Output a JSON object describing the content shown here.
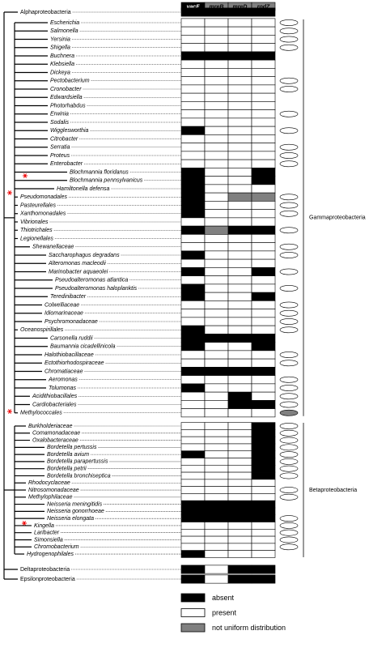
{
  "genes": [
    {
      "name": "yacF",
      "color": "#000000"
    },
    {
      "name": "mreB",
      "color": "#808080"
    },
    {
      "name": "mreD",
      "color": "#808080"
    },
    {
      "name": "rodZ",
      "color": "#808080"
    }
  ],
  "states": {
    "a": {
      "label": "absent",
      "color": "#000000"
    },
    "p": {
      "label": "present",
      "color": "#ffffff"
    },
    "n": {
      "label": "not uniform distribution",
      "color": "#808080"
    }
  },
  "sections": [
    {
      "label": null,
      "rows": [
        {
          "name": "Alphaproteobacteria",
          "cells": [
            "a",
            "a",
            "a",
            "a"
          ],
          "oval": null
        }
      ]
    },
    {
      "label": "Gammaproteobacteria",
      "rows": [
        {
          "name": "Escherichia",
          "cells": [
            "p",
            "p",
            "p",
            "p"
          ],
          "oval": "p"
        },
        {
          "name": "Salmonella",
          "cells": [
            "p",
            "p",
            "p",
            "p"
          ],
          "oval": "p"
        },
        {
          "name": "Yersinia",
          "cells": [
            "p",
            "p",
            "p",
            "p"
          ],
          "oval": "p"
        },
        {
          "name": "Shigella",
          "cells": [
            "p",
            "p",
            "p",
            "p"
          ],
          "oval": "p"
        },
        {
          "name": "Buchnera",
          "cells": [
            "a",
            "a",
            "a",
            "a"
          ],
          "oval": null
        },
        {
          "name": "Klebsiella",
          "cells": [
            "p",
            "p",
            "p",
            "p"
          ],
          "oval": null
        },
        {
          "name": "Dickeya",
          "cells": [
            "p",
            "p",
            "p",
            "p"
          ],
          "oval": null
        },
        {
          "name": "Pectobacterium",
          "cells": [
            "p",
            "p",
            "p",
            "p"
          ],
          "oval": "p"
        },
        {
          "name": "Cronobacter",
          "cells": [
            "p",
            "p",
            "p",
            "p"
          ],
          "oval": "p"
        },
        {
          "name": "Edwardsiella",
          "cells": [
            "p",
            "p",
            "p",
            "p"
          ],
          "oval": null
        },
        {
          "name": "Photorhabdus",
          "cells": [
            "p",
            "p",
            "p",
            "p"
          ],
          "oval": null
        },
        {
          "name": "Erwinia",
          "cells": [
            "p",
            "p",
            "p",
            "p"
          ],
          "oval": "p"
        },
        {
          "name": "Sodalis",
          "cells": [
            "p",
            "p",
            "p",
            "p"
          ],
          "oval": null
        },
        {
          "name": "Wigglesworthia",
          "cells": [
            "a",
            "p",
            "p",
            "p"
          ],
          "oval": "p"
        },
        {
          "name": "Citrobacter",
          "cells": [
            "p",
            "p",
            "p",
            "p"
          ],
          "oval": null
        },
        {
          "name": "Serratia",
          "cells": [
            "p",
            "p",
            "p",
            "p"
          ],
          "oval": "p"
        },
        {
          "name": "Proteus",
          "cells": [
            "p",
            "p",
            "p",
            "p"
          ],
          "oval": "p"
        },
        {
          "name": "Enterobacter",
          "cells": [
            "p",
            "p",
            "p",
            "p"
          ],
          "oval": "p"
        },
        {
          "name": "Blochmannia floridanus",
          "cells": [
            "a",
            "p",
            "p",
            "a"
          ],
          "oval": null
        },
        {
          "name": "Blochmannia pennsylvanicus",
          "cells": [
            "a",
            "p",
            "p",
            "a"
          ],
          "oval": null
        },
        {
          "name": "Hamiltonella defensa",
          "cells": [
            "a",
            "p",
            "p",
            "p"
          ],
          "oval": null
        },
        {
          "name": "Pseudomonadales",
          "cells": [
            "a",
            "p",
            "n",
            "n"
          ],
          "oval": "p"
        },
        {
          "name": "Pasteurellales",
          "cells": [
            "a",
            "p",
            "p",
            "p"
          ],
          "oval": "p"
        },
        {
          "name": "Xanthomonadales",
          "cells": [
            "a",
            "p",
            "p",
            "p"
          ],
          "oval": "p"
        },
        {
          "name": "Vibrionales",
          "cells": [
            "p",
            "p",
            "p",
            "p"
          ],
          "oval": null
        },
        {
          "name": "Thiotrichales",
          "cells": [
            "a",
            "n",
            "a",
            "a"
          ],
          "oval": "p"
        },
        {
          "name": "Legionellales",
          "cells": [
            "p",
            "p",
            "p",
            "p"
          ],
          "oval": null
        },
        {
          "name": "Shewanellaceae",
          "cells": [
            "p",
            "p",
            "p",
            "p"
          ],
          "oval": "p"
        },
        {
          "name": "Saccharophagus degradans",
          "cells": [
            "a",
            "p",
            "p",
            "p"
          ],
          "oval": "p"
        },
        {
          "name": "Alteromonas macleodii",
          "cells": [
            "p",
            "p",
            "p",
            "p"
          ],
          "oval": null
        },
        {
          "name": "Marinobacter aquaeolei",
          "cells": [
            "a",
            "p",
            "p",
            "a"
          ],
          "oval": "p"
        },
        {
          "name": "Pseudoalteromonas atlantica",
          "cells": [
            "p",
            "p",
            "p",
            "p"
          ],
          "oval": null
        },
        {
          "name": "Pseudoalteromonas haloplanktis",
          "cells": [
            "a",
            "p",
            "p",
            "p"
          ],
          "oval": "p"
        },
        {
          "name": "Teredinibacter",
          "cells": [
            "a",
            "p",
            "p",
            "a"
          ],
          "oval": null
        },
        {
          "name": "Colwelliaceae",
          "cells": [
            "p",
            "p",
            "p",
            "p"
          ],
          "oval": "p"
        },
        {
          "name": "Idiomarinaceae",
          "cells": [
            "p",
            "p",
            "p",
            "p"
          ],
          "oval": "p"
        },
        {
          "name": "Psychromonadaceae",
          "cells": [
            "p",
            "p",
            "p",
            "p"
          ],
          "oval": "p"
        },
        {
          "name": "Oceanospirillales",
          "cells": [
            "a",
            "p",
            "p",
            "p"
          ],
          "oval": "p"
        },
        {
          "name": "Carsonella ruddii",
          "cells": [
            "a",
            "a",
            "a",
            "a"
          ],
          "oval": null
        },
        {
          "name": "Baumannia cicadellinicola",
          "cells": [
            "a",
            "p",
            "p",
            "a"
          ],
          "oval": null
        },
        {
          "name": "Halothiobacillaceae",
          "cells": [
            "p",
            "p",
            "p",
            "p"
          ],
          "oval": "p"
        },
        {
          "name": "Ectothiorhodospiraceae",
          "cells": [
            "p",
            "p",
            "p",
            "p"
          ],
          "oval": "p"
        },
        {
          "name": "Chromatiaceae",
          "cells": [
            "a",
            "a",
            "a",
            "a"
          ],
          "oval": null
        },
        {
          "name": "Aeromonas",
          "cells": [
            "p",
            "p",
            "p",
            "p"
          ],
          "oval": "p"
        },
        {
          "name": "Tolumonas",
          "cells": [
            "a",
            "p",
            "p",
            "p"
          ],
          "oval": "p"
        },
        {
          "name": "Acidithiobacillales",
          "cells": [
            "p",
            "p",
            "a",
            "p"
          ],
          "oval": "p"
        },
        {
          "name": "Cardiobacteriales",
          "cells": [
            "p",
            "p",
            "a",
            "a"
          ],
          "oval": "p"
        },
        {
          "name": "Methylococcales",
          "cells": [
            "p",
            "p",
            "p",
            "p"
          ],
          "oval": "n"
        }
      ]
    },
    {
      "label": "Betaproteobacteria",
      "rows": [
        {
          "name": "Burkholderiaceae",
          "cells": [
            "p",
            "p",
            "p",
            "a"
          ],
          "oval": "p"
        },
        {
          "name": "Comamonadaceae",
          "cells": [
            "p",
            "p",
            "p",
            "a"
          ],
          "oval": "p"
        },
        {
          "name": "Oxalobacteraceae",
          "cells": [
            "p",
            "p",
            "p",
            "a"
          ],
          "oval": "p"
        },
        {
          "name": "Bordetella pertussis",
          "cells": [
            "p",
            "p",
            "p",
            "a"
          ],
          "oval": "p"
        },
        {
          "name": "Bordetella avium",
          "cells": [
            "a",
            "p",
            "p",
            "a"
          ],
          "oval": "p"
        },
        {
          "name": "Bordetella parapertussis",
          "cells": [
            "p",
            "p",
            "p",
            "a"
          ],
          "oval": "p"
        },
        {
          "name": "Bordetella petrii",
          "cells": [
            "p",
            "p",
            "p",
            "a"
          ],
          "oval": "p"
        },
        {
          "name": "Bordetella bronchiseptica",
          "cells": [
            "p",
            "p",
            "p",
            "a"
          ],
          "oval": "p"
        },
        {
          "name": "Rhodocyclaceae",
          "cells": [
            "p",
            "p",
            "p",
            "p"
          ],
          "oval": null
        },
        {
          "name": "Nitrosomonadaceae",
          "cells": [
            "p",
            "p",
            "p",
            "p"
          ],
          "oval": "p"
        },
        {
          "name": "Methylophilaceae",
          "cells": [
            "p",
            "p",
            "p",
            "p"
          ],
          "oval": "p"
        },
        {
          "name": "Neisseria meningitidis",
          "cells": [
            "a",
            "a",
            "a",
            "a"
          ],
          "oval": null
        },
        {
          "name": "Neisseria gonorrhoeae",
          "cells": [
            "a",
            "a",
            "a",
            "a"
          ],
          "oval": null
        },
        {
          "name": "Neisseria elongata",
          "cells": [
            "a",
            "a",
            "a",
            "a"
          ],
          "oval": "p"
        },
        {
          "name": "Kingella",
          "cells": [
            "p",
            "p",
            "p",
            "p"
          ],
          "oval": "p"
        },
        {
          "name": "Laribacter",
          "cells": [
            "p",
            "p",
            "p",
            "p"
          ],
          "oval": "p"
        },
        {
          "name": "Simonsiella",
          "cells": [
            "p",
            "p",
            "p",
            "p"
          ],
          "oval": "p"
        },
        {
          "name": "Chromobacterium",
          "cells": [
            "p",
            "p",
            "p",
            "p"
          ],
          "oval": "p"
        },
        {
          "name": "Hydrogenophilales",
          "cells": [
            "a",
            "p",
            "p",
            "p"
          ],
          "oval": null
        }
      ]
    },
    {
      "label": null,
      "rows": [
        {
          "name": "Deltaproteobacteria",
          "cells": [
            "a",
            "p",
            "a",
            "a"
          ],
          "oval": null
        }
      ]
    },
    {
      "label": null,
      "rows": [
        {
          "name": "Epsilonproteobacteria",
          "cells": [
            "a",
            "p",
            "a",
            "a"
          ],
          "oval": null
        }
      ]
    }
  ]
}
